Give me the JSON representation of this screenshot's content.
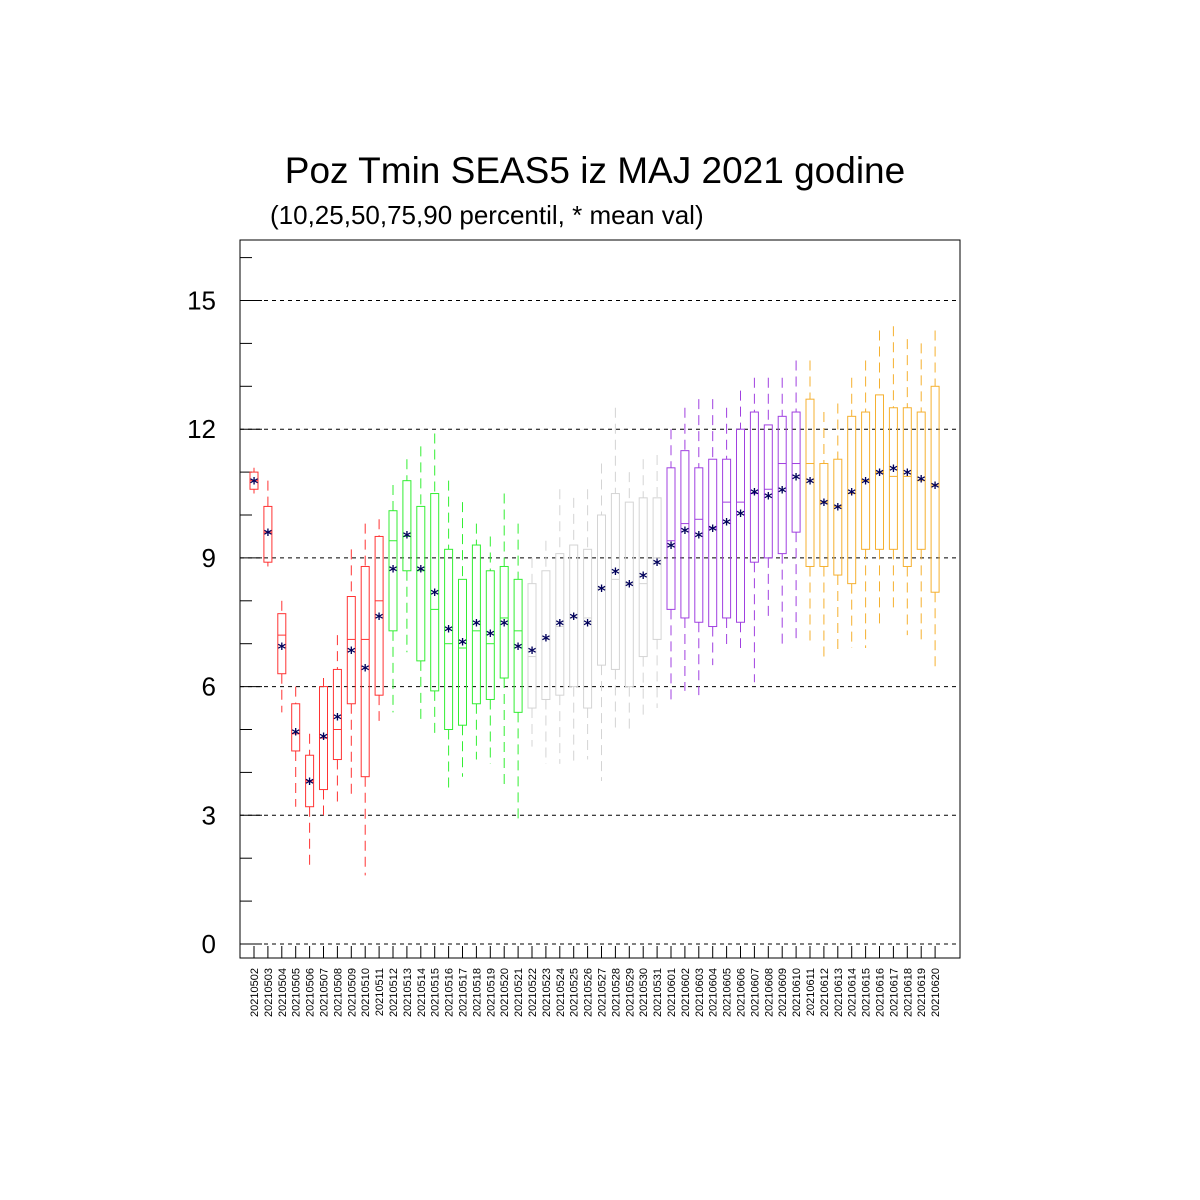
{
  "chart_data": {
    "type": "box",
    "title": "Poz Tmin SEAS5 iz MAJ 2021 godine",
    "subtitle": "(10,25,50,75,90 percentil, * mean val)",
    "ylim": [
      -0.35,
      16.4
    ],
    "yticks": [
      0,
      3,
      6,
      9,
      12,
      15
    ],
    "grid": "horizontal dashed",
    "mean_marker": "*",
    "colors": {
      "May": "#ff3333",
      "May-mid": "#33ee33",
      "May-late": "#d4d4d4",
      "June": "#a040e0",
      "June-late": "#f5b030",
      "mean": "#00005a"
    },
    "categories": [
      "20210502",
      "20210503",
      "20210504",
      "20210505",
      "20210506",
      "20210507",
      "20210508",
      "20210509",
      "20210510",
      "20210511",
      "20210512",
      "20210513",
      "20210514",
      "20210515",
      "20210516",
      "20210517",
      "20210518",
      "20210519",
      "20210520",
      "20210521",
      "20210522",
      "20210523",
      "20210524",
      "20210525",
      "20210526",
      "20210527",
      "20210528",
      "20210529",
      "20210530",
      "20210531",
      "20210601",
      "20210602",
      "20210603",
      "20210604",
      "20210605",
      "20210606",
      "20210607",
      "20210608",
      "20210609",
      "20210610",
      "20210611",
      "20210612",
      "20210613",
      "20210614",
      "20210615",
      "20210616",
      "20210617",
      "20210618",
      "20210619",
      "20210620"
    ],
    "boxes": [
      {
        "p10": 10.5,
        "p25": 10.6,
        "p50": 10.8,
        "p75": 11.0,
        "p90": 11.1,
        "mean": 10.8,
        "color": "#ff3333"
      },
      {
        "p10": 8.8,
        "p25": 8.9,
        "p50": 9.6,
        "p75": 10.2,
        "p90": 10.8,
        "mean": 9.6,
        "color": "#ff3333"
      },
      {
        "p10": 5.4,
        "p25": 6.3,
        "p50": 7.2,
        "p75": 7.7,
        "p90": 8.0,
        "mean": 6.95,
        "color": "#ff3333"
      },
      {
        "p10": 3.2,
        "p25": 4.5,
        "p50": 4.9,
        "p75": 5.6,
        "p90": 6.0,
        "mean": 4.95,
        "color": "#ff3333"
      },
      {
        "p10": 1.8,
        "p25": 3.2,
        "p50": 3.8,
        "p75": 4.4,
        "p90": 4.9,
        "mean": 3.8,
        "color": "#ff3333"
      },
      {
        "p10": 3.0,
        "p25": 3.6,
        "p50": 4.8,
        "p75": 6.0,
        "p90": 6.2,
        "mean": 4.85,
        "color": "#ff3333"
      },
      {
        "p10": 3.2,
        "p25": 4.3,
        "p50": 5.0,
        "p75": 6.4,
        "p90": 7.2,
        "mean": 5.3,
        "color": "#ff3333"
      },
      {
        "p10": 3.4,
        "p25": 5.6,
        "p50": 7.1,
        "p75": 8.1,
        "p90": 9.2,
        "mean": 6.85,
        "color": "#ff3333"
      },
      {
        "p10": 1.6,
        "p25": 3.9,
        "p50": 7.1,
        "p75": 8.8,
        "p90": 9.8,
        "mean": 6.45,
        "color": "#ff3333"
      },
      {
        "p10": 5.2,
        "p25": 5.8,
        "p50": 8.0,
        "p75": 9.5,
        "p90": 9.9,
        "mean": 7.65,
        "color": "#ff3333"
      },
      {
        "p10": 5.4,
        "p25": 7.3,
        "p50": 9.4,
        "p75": 10.1,
        "p90": 10.7,
        "mean": 8.75,
        "color": "#33ee33"
      },
      {
        "p10": 6.8,
        "p25": 8.7,
        "p50": 9.5,
        "p75": 10.8,
        "p90": 11.3,
        "mean": 9.55,
        "color": "#33ee33"
      },
      {
        "p10": 5.2,
        "p25": 6.6,
        "p50": 8.7,
        "p75": 10.2,
        "p90": 11.6,
        "mean": 8.75,
        "color": "#33ee33"
      },
      {
        "p10": 4.9,
        "p25": 5.9,
        "p50": 7.8,
        "p75": 10.5,
        "p90": 11.9,
        "mean": 8.2,
        "color": "#33ee33"
      },
      {
        "p10": 3.6,
        "p25": 5.0,
        "p50": 7.0,
        "p75": 9.2,
        "p90": 10.8,
        "mean": 7.35,
        "color": "#33ee33"
      },
      {
        "p10": 3.9,
        "p25": 5.1,
        "p50": 6.9,
        "p75": 8.5,
        "p90": 10.3,
        "mean": 7.05,
        "color": "#33ee33"
      },
      {
        "p10": 4.3,
        "p25": 5.6,
        "p50": 7.3,
        "p75": 9.3,
        "p90": 9.8,
        "mean": 7.5,
        "color": "#33ee33"
      },
      {
        "p10": 4.2,
        "p25": 5.7,
        "p50": 7.0,
        "p75": 8.7,
        "p90": 9.5,
        "mean": 7.25,
        "color": "#33ee33"
      },
      {
        "p10": 3.6,
        "p25": 6.2,
        "p50": 7.6,
        "p75": 8.8,
        "p90": 10.5,
        "mean": 7.5,
        "color": "#33ee33"
      },
      {
        "p10": 2.8,
        "p25": 5.4,
        "p50": 7.3,
        "p75": 8.5,
        "p90": 9.8,
        "mean": 6.95,
        "color": "#33ee33"
      },
      {
        "p10": 4.6,
        "p25": 5.5,
        "p50": 6.7,
        "p75": 8.4,
        "p90": 9.0,
        "mean": 6.85,
        "color": "#d4d4d4"
      },
      {
        "p10": 4.2,
        "p25": 5.7,
        "p50": 7.1,
        "p75": 8.7,
        "p90": 9.4,
        "mean": 7.15,
        "color": "#d4d4d4"
      },
      {
        "p10": 4.2,
        "p25": 5.8,
        "p50": 7.4,
        "p75": 9.1,
        "p90": 10.6,
        "mean": 7.5,
        "color": "#d4d4d4"
      },
      {
        "p10": 4.2,
        "p25": 6.0,
        "p50": 7.6,
        "p75": 9.3,
        "p90": 10.4,
        "mean": 7.65,
        "color": "#d4d4d4"
      },
      {
        "p10": 4.3,
        "p25": 5.5,
        "p50": 7.6,
        "p75": 9.2,
        "p90": 10.6,
        "mean": 7.5,
        "color": "#d4d4d4"
      },
      {
        "p10": 3.8,
        "p25": 6.5,
        "p50": 8.3,
        "p75": 10.0,
        "p90": 11.2,
        "mean": 8.3,
        "color": "#d4d4d4"
      },
      {
        "p10": 5.0,
        "p25": 6.4,
        "p50": 8.5,
        "p75": 10.5,
        "p90": 12.5,
        "mean": 8.7,
        "color": "#d4d4d4"
      },
      {
        "p10": 4.9,
        "p25": 6.0,
        "p50": 8.4,
        "p75": 10.3,
        "p90": 11.0,
        "mean": 8.4,
        "color": "#d4d4d4"
      },
      {
        "p10": 5.3,
        "p25": 6.7,
        "p50": 8.4,
        "p75": 10.4,
        "p90": 11.3,
        "mean": 8.6,
        "color": "#d4d4d4"
      },
      {
        "p10": 5.5,
        "p25": 7.1,
        "p50": 9.0,
        "p75": 10.4,
        "p90": 11.4,
        "mean": 8.9,
        "color": "#d4d4d4"
      },
      {
        "p10": 5.6,
        "p25": 7.8,
        "p50": 9.4,
        "p75": 11.1,
        "p90": 12.0,
        "mean": 9.3,
        "color": "#a040e0"
      },
      {
        "p10": 5.9,
        "p25": 7.6,
        "p50": 9.8,
        "p75": 11.5,
        "p90": 12.5,
        "mean": 9.65,
        "color": "#a040e0"
      },
      {
        "p10": 5.8,
        "p25": 7.5,
        "p50": 9.9,
        "p75": 11.1,
        "p90": 12.7,
        "mean": 9.55,
        "color": "#a040e0"
      },
      {
        "p10": 6.5,
        "p25": 7.4,
        "p50": 9.7,
        "p75": 11.3,
        "p90": 12.7,
        "mean": 9.7,
        "color": "#a040e0"
      },
      {
        "p10": 6.9,
        "p25": 7.6,
        "p50": 10.3,
        "p75": 11.3,
        "p90": 12.5,
        "mean": 9.85,
        "color": "#a040e0"
      },
      {
        "p10": 6.9,
        "p25": 7.5,
        "p50": 10.3,
        "p75": 12.0,
        "p90": 12.9,
        "mean": 10.05,
        "color": "#a040e0"
      },
      {
        "p10": 6.1,
        "p25": 8.9,
        "p50": 10.5,
        "p75": 12.4,
        "p90": 13.2,
        "mean": 10.55,
        "color": "#a040e0"
      },
      {
        "p10": 7.6,
        "p25": 9.0,
        "p50": 10.6,
        "p75": 12.1,
        "p90": 13.2,
        "mean": 10.45,
        "color": "#a040e0"
      },
      {
        "p10": 7.0,
        "p25": 9.1,
        "p50": 11.2,
        "p75": 12.3,
        "p90": 13.2,
        "mean": 10.6,
        "color": "#a040e0"
      },
      {
        "p10": 7.1,
        "p25": 9.6,
        "p50": 11.2,
        "p75": 12.4,
        "p90": 13.6,
        "mean": 10.9,
        "color": "#a040e0"
      },
      {
        "p10": 7.0,
        "p25": 8.8,
        "p50": 11.2,
        "p75": 12.7,
        "p90": 13.6,
        "mean": 10.8,
        "color": "#f5b030"
      },
      {
        "p10": 6.7,
        "p25": 8.8,
        "p50": 10.3,
        "p75": 11.2,
        "p90": 12.4,
        "mean": 10.3,
        "color": "#f5b030"
      },
      {
        "p10": 6.8,
        "p25": 8.6,
        "p50": 10.2,
        "p75": 11.3,
        "p90": 12.6,
        "mean": 10.2,
        "color": "#f5b030"
      },
      {
        "p10": 6.9,
        "p25": 8.4,
        "p50": 10.5,
        "p75": 12.3,
        "p90": 13.2,
        "mean": 10.55,
        "color": "#f5b030"
      },
      {
        "p10": 6.9,
        "p25": 9.2,
        "p50": 10.8,
        "p75": 12.4,
        "p90": 13.6,
        "mean": 10.8,
        "color": "#f5b030"
      },
      {
        "p10": 7.4,
        "p25": 9.2,
        "p50": 11.0,
        "p75": 12.8,
        "p90": 14.3,
        "mean": 11.0,
        "color": "#f5b030"
      },
      {
        "p10": 7.8,
        "p25": 9.2,
        "p50": 10.9,
        "p75": 12.5,
        "p90": 14.4,
        "mean": 11.1,
        "color": "#f5b030"
      },
      {
        "p10": 7.2,
        "p25": 8.8,
        "p50": 10.9,
        "p75": 12.5,
        "p90": 14.1,
        "mean": 11.0,
        "color": "#f5b030"
      },
      {
        "p10": 7.0,
        "p25": 9.2,
        "p50": 10.8,
        "p75": 12.4,
        "p90": 14.0,
        "mean": 10.85,
        "color": "#f5b030"
      },
      {
        "p10": 6.4,
        "p25": 8.2,
        "p50": 10.7,
        "p75": 13.0,
        "p90": 14.3,
        "mean": 10.7,
        "color": "#f5b030"
      }
    ]
  }
}
